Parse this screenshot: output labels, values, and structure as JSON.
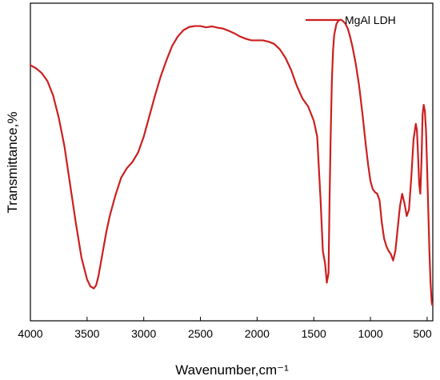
{
  "chart_data": {
    "type": "line",
    "title": "",
    "xlabel": "Wavenumber,cm⁻¹",
    "ylabel": "Transmittance,%",
    "xlim": [
      4000,
      450
    ],
    "x_reversed": true,
    "xticks": [
      4000,
      3500,
      3000,
      2500,
      2000,
      1500,
      1000,
      500
    ],
    "ylim": [
      0,
      100
    ],
    "y_tick_labels": false,
    "grid": false,
    "legend_position": "top-right",
    "series": [
      {
        "name": "MgAl LDH",
        "color": "#cc1f1f",
        "x": [
          4000,
          3950,
          3900,
          3850,
          3800,
          3750,
          3700,
          3650,
          3600,
          3550,
          3500,
          3470,
          3440,
          3420,
          3400,
          3370,
          3330,
          3300,
          3250,
          3200,
          3150,
          3100,
          3050,
          3000,
          2950,
          2900,
          2850,
          2800,
          2750,
          2700,
          2650,
          2600,
          2550,
          2500,
          2450,
          2400,
          2350,
          2300,
          2250,
          2200,
          2150,
          2100,
          2050,
          2000,
          1950,
          1900,
          1850,
          1800,
          1750,
          1700,
          1650,
          1600,
          1550,
          1500,
          1470,
          1440,
          1420,
          1400,
          1385,
          1370,
          1360,
          1350,
          1340,
          1330,
          1320,
          1300,
          1280,
          1260,
          1240,
          1220,
          1200,
          1180,
          1160,
          1130,
          1100,
          1070,
          1040,
          1020,
          1000,
          980,
          960,
          940,
          920,
          900,
          880,
          860,
          840,
          820,
          800,
          780,
          760,
          740,
          720,
          700,
          680,
          660,
          640,
          620,
          600,
          590,
          580,
          570,
          560,
          550,
          540,
          530,
          520,
          510,
          500,
          490,
          480,
          470,
          460,
          455
        ],
        "y": [
          80.5,
          79.5,
          78,
          75.5,
          71,
          64,
          55,
          43,
          31,
          20,
          13,
          10.8,
          10.2,
          11.2,
          14,
          20,
          28,
          33,
          39.5,
          45,
          48,
          50,
          53,
          58,
          64.5,
          71,
          77,
          82,
          86.5,
          89.5,
          91.5,
          92.5,
          92.8,
          92.8,
          92.4,
          92.7,
          92.3,
          92,
          91.3,
          90.5,
          89.5,
          88.8,
          88.3,
          88.3,
          88.3,
          87.9,
          87.2,
          85.5,
          82.8,
          79,
          74,
          70,
          67.5,
          63,
          58,
          38,
          22,
          18,
          12,
          15,
          40,
          60,
          76,
          85,
          90,
          93.5,
          94.6,
          94.8,
          94.3,
          93.5,
          92,
          89.5,
          86.5,
          81,
          74,
          65,
          55,
          49,
          44,
          41.5,
          40.5,
          40,
          38,
          31,
          26,
          23.5,
          22,
          21,
          19,
          22,
          29,
          36,
          40,
          37,
          33,
          35,
          45,
          57,
          62,
          60,
          52,
          43,
          40,
          50,
          65,
          68,
          66,
          60,
          48,
          35,
          22,
          12,
          6,
          5
        ]
      }
    ]
  }
}
